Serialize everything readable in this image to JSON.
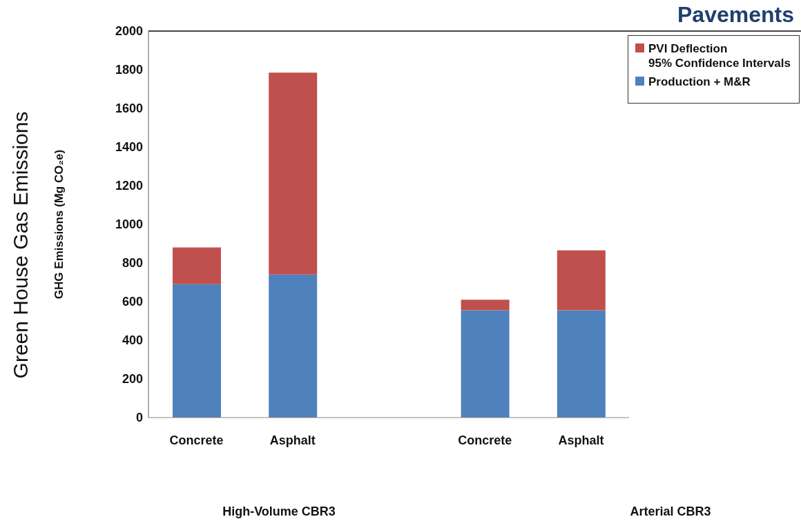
{
  "chart_data": {
    "type": "bar",
    "title": "Pavements",
    "ylabel": "GHG Emissions (Mg CO₂e)",
    "annotations": [
      "High-Volume CBR3",
      "Arterial CBR3",
      "Green House Gas Emissions"
    ],
    "categories": [
      "Concrete",
      "Asphalt",
      null,
      "Concrete",
      "Asphalt"
    ],
    "stacked": true,
    "series": [
      {
        "name": "Production + M&R",
        "color": "#4f81bd",
        "values": [
          690,
          740,
          null,
          555,
          555
        ]
      },
      {
        "name": "PVI Deflection\n95% Confidence Intervals",
        "color": "#c0504d",
        "values": [
          190,
          1045,
          null,
          55,
          310
        ]
      }
    ],
    "ylim": [
      0,
      2000
    ],
    "yticks": [
      0,
      200,
      400,
      600,
      800,
      1000,
      1200,
      1400,
      1600,
      1800,
      2000
    ],
    "grid": false,
    "legend": "top right"
  }
}
